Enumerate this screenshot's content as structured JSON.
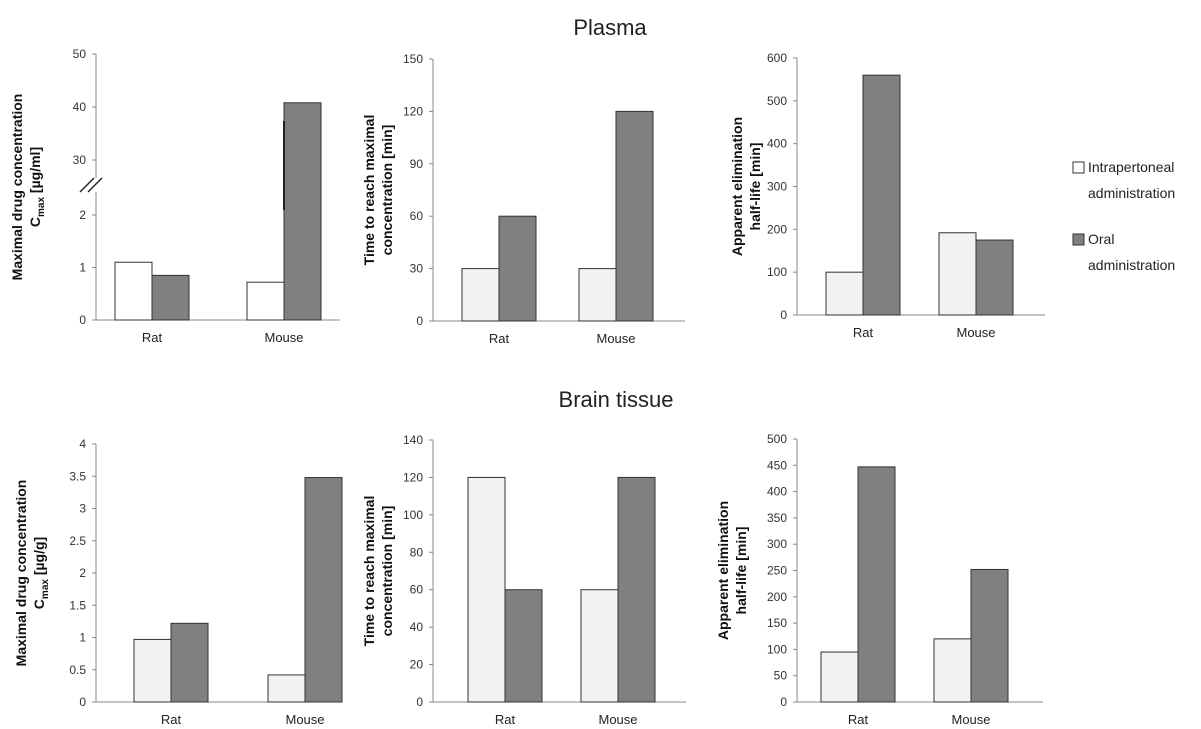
{
  "sections": [
    {
      "title": "Plasma"
    },
    {
      "title": "Brain tissue"
    }
  ],
  "legend": {
    "items": [
      {
        "line1": "Intrapertoneal",
        "line2": "administration",
        "color": "#ffffff"
      },
      {
        "line1": "Oral",
        "line2": "administration",
        "color": "#808080"
      }
    ]
  },
  "colors": {
    "ip": "#f2f2f2",
    "ip_plasma_cmax": "#ffffff",
    "oral": "#808080",
    "axis": "#888888"
  },
  "chart_data": [
    {
      "type": "bar",
      "section": "Plasma",
      "ylabel_lines": [
        "Maximal drug concentration",
        "Cmax [µg/ml]"
      ],
      "ylabel_sub": {
        "main": "C",
        "sub": "max",
        "rest": " [µg/ml]"
      },
      "categories": [
        "Rat",
        "Mouse"
      ],
      "axis_break": true,
      "ticks_lower": [
        0,
        1,
        2
      ],
      "ticks_upper": [
        30,
        40,
        50
      ],
      "ylim_lower": [
        0,
        2
      ],
      "ylim_upper": [
        30,
        50
      ],
      "series": [
        {
          "name": "Intrapertoneal administration",
          "values": [
            1.1,
            0.72
          ]
        },
        {
          "name": "Oral administration",
          "values": [
            0.85,
            40.8
          ]
        }
      ]
    },
    {
      "type": "bar",
      "section": "Plasma",
      "ylabel_lines": [
        "Time to reach maximal",
        "concentration [min]"
      ],
      "categories": [
        "Rat",
        "Mouse"
      ],
      "ylim": [
        0,
        150
      ],
      "ticks": [
        0,
        30,
        60,
        90,
        120,
        150
      ],
      "series": [
        {
          "name": "Intrapertoneal administration",
          "values": [
            30,
            30
          ]
        },
        {
          "name": "Oral administration",
          "values": [
            60,
            120
          ]
        }
      ]
    },
    {
      "type": "bar",
      "section": "Plasma",
      "ylabel_lines": [
        "Apparent elimination",
        "half-life [min]"
      ],
      "categories": [
        "Rat",
        "Mouse"
      ],
      "ylim": [
        0,
        600
      ],
      "ticks": [
        0,
        100,
        200,
        300,
        400,
        500,
        600
      ],
      "series": [
        {
          "name": "Intrapertoneal administration",
          "values": [
            100,
            192
          ]
        },
        {
          "name": "Oral administration",
          "values": [
            560,
            175
          ]
        }
      ]
    },
    {
      "type": "bar",
      "section": "Brain tissue",
      "ylabel_lines": [
        "Maximal drug concentration",
        "Cmax [µg/g]"
      ],
      "ylabel_sub": {
        "main": "C",
        "sub": "max",
        "rest": " [µg/g]"
      },
      "categories": [
        "Rat",
        "Mouse"
      ],
      "ylim": [
        0,
        4
      ],
      "ticks": [
        0,
        0.5,
        1,
        1.5,
        2,
        2.5,
        3,
        3.5,
        4
      ],
      "series": [
        {
          "name": "Intrapertoneal administration",
          "values": [
            0.97,
            0.42
          ]
        },
        {
          "name": "Oral administration",
          "values": [
            1.22,
            3.48
          ]
        }
      ]
    },
    {
      "type": "bar",
      "section": "Brain tissue",
      "ylabel_lines": [
        "Time to reach maximal",
        "concentration [min]"
      ],
      "categories": [
        "Rat",
        "Mouse"
      ],
      "ylim": [
        0,
        140
      ],
      "ticks": [
        0,
        20,
        40,
        60,
        80,
        100,
        120,
        140
      ],
      "series": [
        {
          "name": "Intrapertoneal administration",
          "values": [
            120,
            60
          ]
        },
        {
          "name": "Oral administration",
          "values": [
            60,
            120
          ]
        }
      ]
    },
    {
      "type": "bar",
      "section": "Brain tissue",
      "ylabel_lines": [
        "Apparent elimination",
        "half-life [min]"
      ],
      "categories": [
        "Rat",
        "Mouse"
      ],
      "ylim": [
        0,
        500
      ],
      "ticks": [
        0,
        50,
        100,
        150,
        200,
        250,
        300,
        350,
        400,
        450,
        500
      ],
      "series": [
        {
          "name": "Intrapertoneal administration",
          "values": [
            95,
            120
          ]
        },
        {
          "name": "Oral administration",
          "values": [
            447,
            252
          ]
        }
      ]
    }
  ]
}
